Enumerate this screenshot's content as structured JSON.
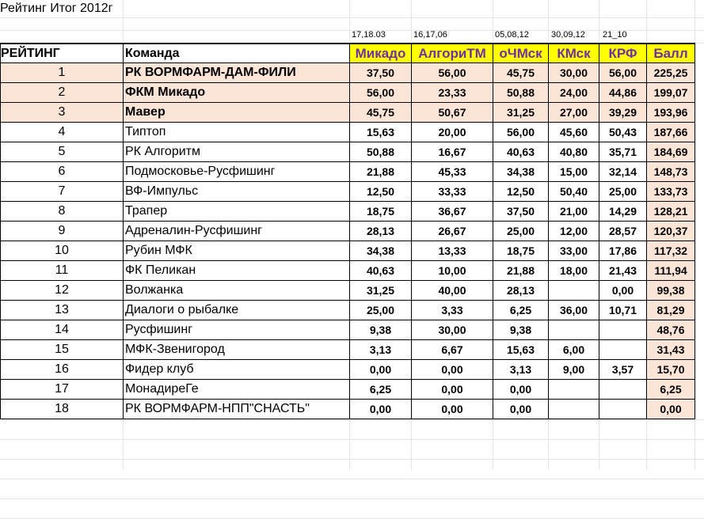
{
  "title": "Рейтинг Итог 2012г",
  "dates": [
    "17,18.03",
    "16,17,06",
    "05,08,12",
    "30,09,12",
    "21_10"
  ],
  "headers": {
    "rank": "РЕЙТИНГ",
    "team": "Команда",
    "cols": [
      "Микадо",
      "АлгориТМ",
      "оЧМск",
      "КМск",
      "КРФ",
      "Балл"
    ]
  },
  "rows": [
    {
      "rank": "1",
      "team": "РК ВОРМФАРМ-ДАМ-ФИЛИ",
      "v": [
        "37,50",
        "56,00",
        "45,75",
        "30,00",
        "56,00"
      ],
      "total": "225,25"
    },
    {
      "rank": "2",
      "team": "ФКМ Микадо",
      "v": [
        "56,00",
        "23,33",
        "50,88",
        "24,00",
        "44,86"
      ],
      "total": "199,07"
    },
    {
      "rank": "3",
      "team": "Мавер",
      "v": [
        "45,75",
        "50,67",
        "31,25",
        "27,00",
        "39,29"
      ],
      "total": "193,96"
    },
    {
      "rank": "4",
      "team": "Типтоп",
      "v": [
        "15,63",
        "20,00",
        "56,00",
        "45,60",
        "50,43"
      ],
      "total": "187,66"
    },
    {
      "rank": "5",
      "team": "РК Алгоритм",
      "v": [
        "50,88",
        "16,67",
        "40,63",
        "40,80",
        "35,71"
      ],
      "total": "184,69"
    },
    {
      "rank": "6",
      "team": "Подмосковье-Русфишинг",
      "v": [
        "21,88",
        "45,33",
        "34,38",
        "15,00",
        "32,14"
      ],
      "total": "148,73"
    },
    {
      "rank": "7",
      "team": "ВФ-Импульс",
      "v": [
        "12,50",
        "33,33",
        "12,50",
        "50,40",
        "25,00"
      ],
      "total": "133,73"
    },
    {
      "rank": "8",
      "team": "Трапер",
      "v": [
        "18,75",
        "36,67",
        "37,50",
        "21,00",
        "14,29"
      ],
      "total": "128,21"
    },
    {
      "rank": "9",
      "team": "Адреналин-Русфишинг",
      "v": [
        "28,13",
        "26,67",
        "25,00",
        "12,00",
        "28,57"
      ],
      "total": "120,37"
    },
    {
      "rank": "10",
      "team": "Рубин МФК",
      "v": [
        "34,38",
        "13,33",
        "18,75",
        "33,00",
        "17,86"
      ],
      "total": "117,32"
    },
    {
      "rank": "11",
      "team": "ФК Пеликан",
      "v": [
        "40,63",
        "10,00",
        "21,88",
        "18,00",
        "21,43"
      ],
      "total": "111,94"
    },
    {
      "rank": "12",
      "team": "Волжанка",
      "v": [
        "31,25",
        "40,00",
        "28,13",
        "",
        "0,00"
      ],
      "total": "99,38"
    },
    {
      "rank": "13",
      "team": "Диалоги о рыбалке",
      "v": [
        "25,00",
        "3,33",
        "6,25",
        "36,00",
        "10,71"
      ],
      "total": "81,29"
    },
    {
      "rank": "14",
      "team": "Русфишинг",
      "v": [
        "9,38",
        "30,00",
        "9,38",
        "",
        ""
      ],
      "total": "48,76"
    },
    {
      "rank": "15",
      "team": "МФК-Звенигород",
      "v": [
        "3,13",
        "6,67",
        "15,63",
        "6,00",
        ""
      ],
      "total": "31,43"
    },
    {
      "rank": "16",
      "team": "Фидер клуб",
      "v": [
        "0,00",
        "0,00",
        "3,13",
        "9,00",
        "3,57"
      ],
      "total": "15,70"
    },
    {
      "rank": "17",
      "team": "МонадиреГе",
      "v": [
        "6,25",
        "0,00",
        "0,00",
        "",
        ""
      ],
      "total": "6,25"
    },
    {
      "rank": "18",
      "team": "РК ВОРМФАРМ-НПП\"СНАСТЬ\"",
      "v": [
        "0,00",
        "0,00",
        "0,00",
        "",
        ""
      ],
      "total": "0,00"
    }
  ]
}
